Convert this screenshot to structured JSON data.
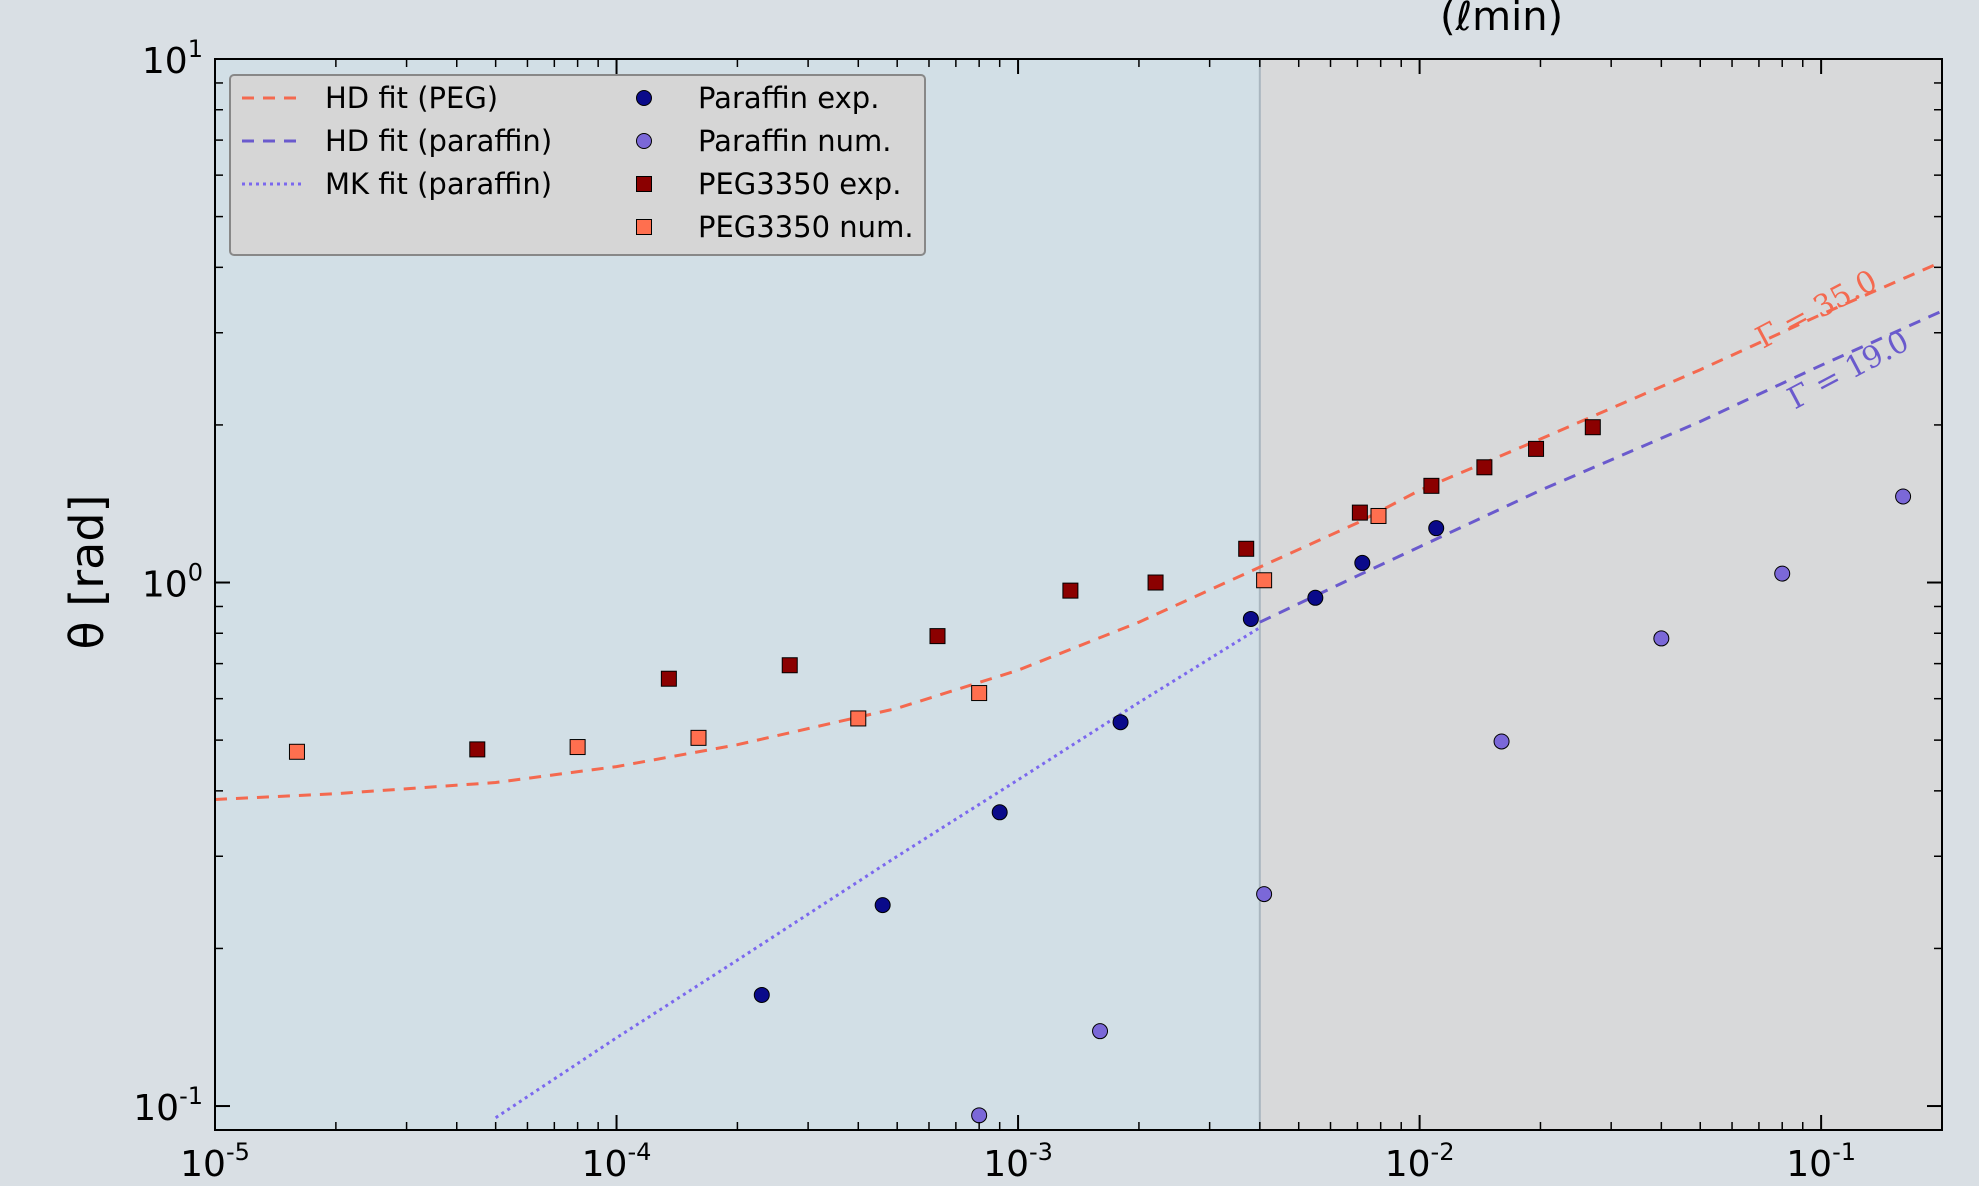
{
  "header_fragment": "(ℓmin)",
  "chart_data": {
    "type": "scatter",
    "title": "",
    "xlabel": "",
    "ylabel": "θ [rad]",
    "xscale": "log",
    "yscale": "log",
    "xlim": [
      1e-05,
      0.2
    ],
    "ylim": [
      0.09,
      10
    ],
    "grid": false,
    "legend_position": "top-left",
    "shaded_regions": [
      {
        "from": 1e-05,
        "to": 0.004,
        "color": "#d2dfe6"
      },
      {
        "from": 0.004,
        "to": 0.2,
        "color": "#d8d9da"
      }
    ],
    "vertical_line_x": 0.004,
    "x_ticks": [
      {
        "value": 1e-05,
        "base": "10",
        "exp": "-5"
      },
      {
        "value": 0.0001,
        "base": "10",
        "exp": "-4"
      },
      {
        "value": 0.001,
        "base": "10",
        "exp": "-3"
      },
      {
        "value": 0.01,
        "base": "10",
        "exp": "-2"
      },
      {
        "value": 0.1,
        "base": "10",
        "exp": "-1"
      }
    ],
    "y_ticks": [
      {
        "value": 0.1,
        "base": "10",
        "exp": "-1"
      },
      {
        "value": 1,
        "base": "10",
        "exp": "0"
      },
      {
        "value": 10,
        "base": "10",
        "exp": "1"
      }
    ],
    "series": [
      {
        "name": "HD fit (PEG)",
        "kind": "line",
        "style": "dashed",
        "color": "#f4694f",
        "x": [
          1e-05,
          2e-05,
          5e-05,
          0.0001,
          0.0002,
          0.0005,
          0.001,
          0.002,
          0.004,
          0.007,
          0.01,
          0.02,
          0.05,
          0.1,
          0.2
        ],
        "y": [
          0.385,
          0.395,
          0.415,
          0.445,
          0.49,
          0.575,
          0.68,
          0.84,
          1.07,
          1.3,
          1.5,
          1.88,
          2.55,
          3.25,
          4.1
        ]
      },
      {
        "name": "HD fit (paraffin)",
        "kind": "line",
        "style": "dashed",
        "color": "#6a5acd",
        "x": [
          0.004,
          0.007,
          0.01,
          0.02,
          0.05,
          0.1,
          0.2
        ],
        "y": [
          0.84,
          1.03,
          1.17,
          1.5,
          2.03,
          2.6,
          3.3
        ]
      },
      {
        "name": "MK fit (paraffin)",
        "kind": "line",
        "style": "dotted",
        "color": "#7b68ee",
        "x": [
          5e-05,
          0.0001,
          0.0002,
          0.0005,
          0.001,
          0.002,
          0.004
        ],
        "y": [
          0.095,
          0.135,
          0.19,
          0.3,
          0.42,
          0.59,
          0.82
        ]
      },
      {
        "name": "Paraffin exp.",
        "kind": "scatter",
        "marker": "circle",
        "color": "#0a0a8a",
        "x": [
          0.00023,
          0.00046,
          0.0009,
          0.0018,
          0.0038,
          0.0055,
          0.0072,
          0.011
        ],
        "y": [
          0.163,
          0.242,
          0.364,
          0.541,
          0.852,
          0.935,
          1.09,
          1.27
        ]
      },
      {
        "name": "Paraffin num.",
        "kind": "scatter",
        "marker": "circle",
        "color": "#7b68d8",
        "x": [
          0.0008,
          0.0016,
          0.0041,
          0.016,
          0.04,
          0.08,
          0.16
        ],
        "y": [
          0.096,
          0.139,
          0.254,
          0.497,
          0.782,
          1.04,
          1.46
        ]
      },
      {
        "name": "PEG3350 exp.",
        "kind": "scatter",
        "marker": "square",
        "color": "#8b0000",
        "x": [
          4.5e-05,
          0.000135,
          0.00027,
          0.00063,
          0.00135,
          0.0022,
          0.0037,
          0.0071,
          0.0107,
          0.0145,
          0.0195,
          0.027
        ],
        "y": [
          0.48,
          0.655,
          0.695,
          0.79,
          0.965,
          1.0,
          1.16,
          1.36,
          1.53,
          1.66,
          1.8,
          1.98
        ]
      },
      {
        "name": "PEG3350 num.",
        "kind": "scatter",
        "marker": "square",
        "color": "#ff6f4f",
        "x": [
          1.6e-05,
          8e-05,
          0.00016,
          0.0004,
          0.0008,
          0.0041,
          0.0079
        ],
        "y": [
          0.475,
          0.485,
          0.505,
          0.55,
          0.615,
          1.01,
          1.34
        ]
      }
    ],
    "annotations": [
      {
        "text": "Γ = 35.0",
        "x": 0.1,
        "y": 3.2,
        "angle": -28,
        "color": "#f4694f"
      },
      {
        "text": "Γ = 19.0",
        "x": 0.12,
        "y": 2.45,
        "angle": -28,
        "color": "#6a5acd"
      }
    ]
  }
}
